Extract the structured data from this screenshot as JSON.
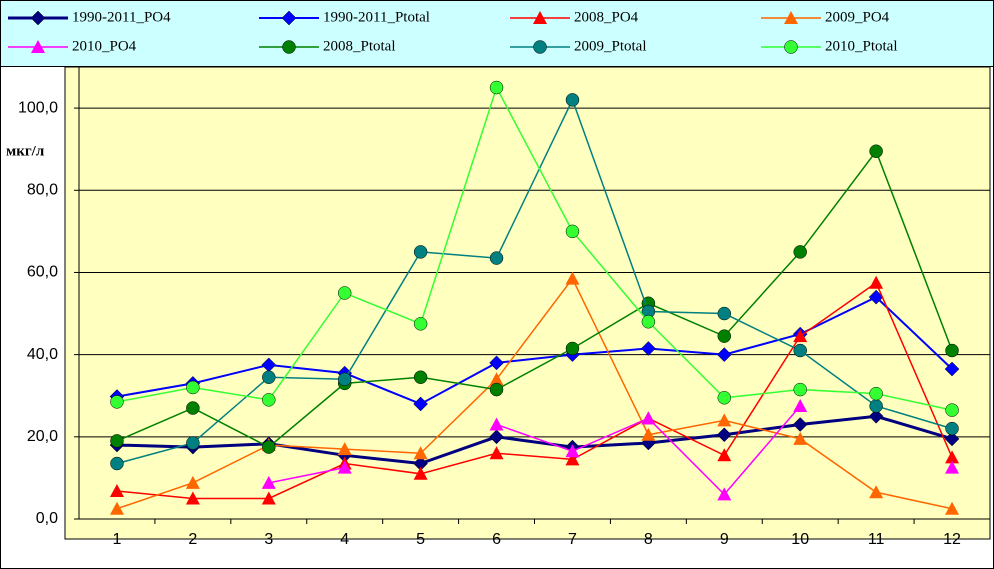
{
  "chart_data": {
    "type": "line",
    "y_label": "мкг/л",
    "categories": [
      "1",
      "2",
      "3",
      "4",
      "5",
      "6",
      "7",
      "8",
      "9",
      "10",
      "11",
      "12"
    ],
    "ylim": [
      0,
      110
    ],
    "yticks": [
      {
        "value": 0,
        "label": "0,0"
      },
      {
        "value": 20,
        "label": "20,0"
      },
      {
        "value": 40,
        "label": "40,0"
      },
      {
        "value": 60,
        "label": "60,0"
      },
      {
        "value": 80,
        "label": "80,0"
      },
      {
        "value": 100,
        "label": "100,0"
      }
    ],
    "grid": true,
    "legend": "top",
    "series": [
      {
        "name": "1990-2011_PO4",
        "color": "#000080",
        "marker": "diamond",
        "line_width": 3,
        "values": [
          18,
          17.5,
          18.3,
          15.5,
          13.5,
          20,
          17.5,
          18.5,
          20.5,
          23,
          25,
          19.5
        ]
      },
      {
        "name": "1990-2011_Ptotal",
        "color": "#0000ff",
        "marker": "diamond",
        "line_width": 2,
        "values": [
          29.8,
          33,
          37.5,
          35.5,
          28,
          38,
          40,
          41.5,
          40,
          45,
          54,
          36.5
        ]
      },
      {
        "name": "2008_PO4",
        "color": "#ff0000",
        "marker": "triangle",
        "line_width": 1.5,
        "values": [
          6.8,
          5,
          5,
          13.5,
          11,
          16,
          14.5,
          24.5,
          15.5,
          44.5,
          57.5,
          15
        ]
      },
      {
        "name": "2009_PO4",
        "color": "#ff6600",
        "marker": "triangle",
        "line_width": 1.5,
        "values": [
          2.5,
          8.8,
          18,
          17,
          16,
          34,
          58.5,
          20.5,
          24,
          19.5,
          6.5,
          2.5
        ]
      },
      {
        "name": "2010_PO4",
        "color": "#ff00ff",
        "marker": "triangle",
        "line_width": 1.5,
        "values": [
          null,
          null,
          8.8,
          12.5,
          null,
          23,
          16.5,
          24.5,
          6,
          27.5,
          null,
          12.5
        ]
      },
      {
        "name": "2008_Ptotal",
        "color": "#008000",
        "marker": "circle",
        "line_width": 1.5,
        "values": [
          19,
          27,
          17.5,
          33,
          34.5,
          31.5,
          41.5,
          52.5,
          44.5,
          65,
          89.5,
          41
        ]
      },
      {
        "name": "2009_Ptotal",
        "color": "#008080",
        "marker": "circle",
        "line_width": 1.5,
        "values": [
          13.5,
          18.5,
          34.5,
          34,
          65,
          63.5,
          102,
          50.5,
          50,
          41,
          27.5,
          22
        ]
      },
      {
        "name": "2010_Ptotal",
        "color": "#33ff33",
        "marker": "circle",
        "line_width": 1.5,
        "values": [
          28.5,
          32,
          29,
          55,
          47.5,
          105,
          70,
          48,
          29.5,
          31.5,
          30.5,
          26.5
        ]
      }
    ]
  }
}
